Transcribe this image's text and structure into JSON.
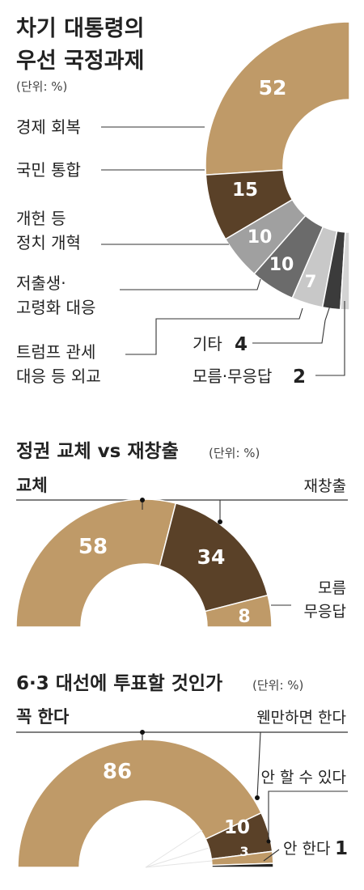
{
  "colors": {
    "gold": "#bf9a68",
    "brown": "#5a4128",
    "gray_light": "#c8c8c8",
    "gray_mid": "#a0a0a0",
    "gray_dark": "#6b6b6b",
    "charcoal": "#3b3b3b",
    "text": "#222222",
    "line": "#333333"
  },
  "chart_data": [
    {
      "type": "pie",
      "title": "차기 대통령의\n우선 국정과제",
      "title_line1": "차기 대통령의",
      "title_line2": "우선 국정과제",
      "unit": "(단위: %)",
      "categories": [
        "경제 회복",
        "국민 통합",
        "개헌 등 정치 개혁",
        "저출생·고령화 대응",
        "트럼프 관세 대응 등 외교",
        "기타",
        "모름·무응답"
      ],
      "values": [
        52,
        15,
        10,
        10,
        7,
        4,
        2
      ],
      "labels": {
        "economy": "경제 회복",
        "unity": "국민 통합",
        "reform_1": "개헌 등",
        "reform_2": "정치 개혁",
        "birth_1": "저출생·",
        "birth_2": "고령화 대응",
        "trump_1": "트럼프 관세",
        "trump_2": "대응 등 외교",
        "etc": "기타",
        "dontknow": "모름·무응답"
      },
      "value_labels": {
        "economy": "52",
        "unity": "15",
        "reform": "10",
        "birth": "10",
        "trump": "7",
        "etc": "4",
        "dontknow": "2"
      }
    },
    {
      "type": "pie",
      "title": "정권 교체 vs 재창출",
      "unit": "(단위: %)",
      "categories": [
        "교체",
        "재창출",
        "모름 무응답"
      ],
      "values": [
        58,
        34,
        8
      ],
      "labels": {
        "replace": "교체",
        "recreate": "재창출",
        "dk_1": "모름",
        "dk_2": "무응답"
      },
      "value_labels": {
        "replace": "58",
        "recreate": "34",
        "dk": "8"
      }
    },
    {
      "type": "pie",
      "title": "6·3 대선에 투표할 것인가",
      "unit": "(단위: %)",
      "categories": [
        "꼭 한다",
        "웬만하면 한다",
        "안 할 수 있다",
        "안 한다"
      ],
      "values": [
        86,
        10,
        3,
        1
      ],
      "labels": {
        "must": "꼭 한다",
        "probably": "웬만하면 한다",
        "maybe_not": "안 할 수 있다",
        "not": "안 한다"
      },
      "value_labels": {
        "must": "86",
        "probably": "10",
        "maybe_not": "3",
        "not": "1"
      }
    }
  ]
}
